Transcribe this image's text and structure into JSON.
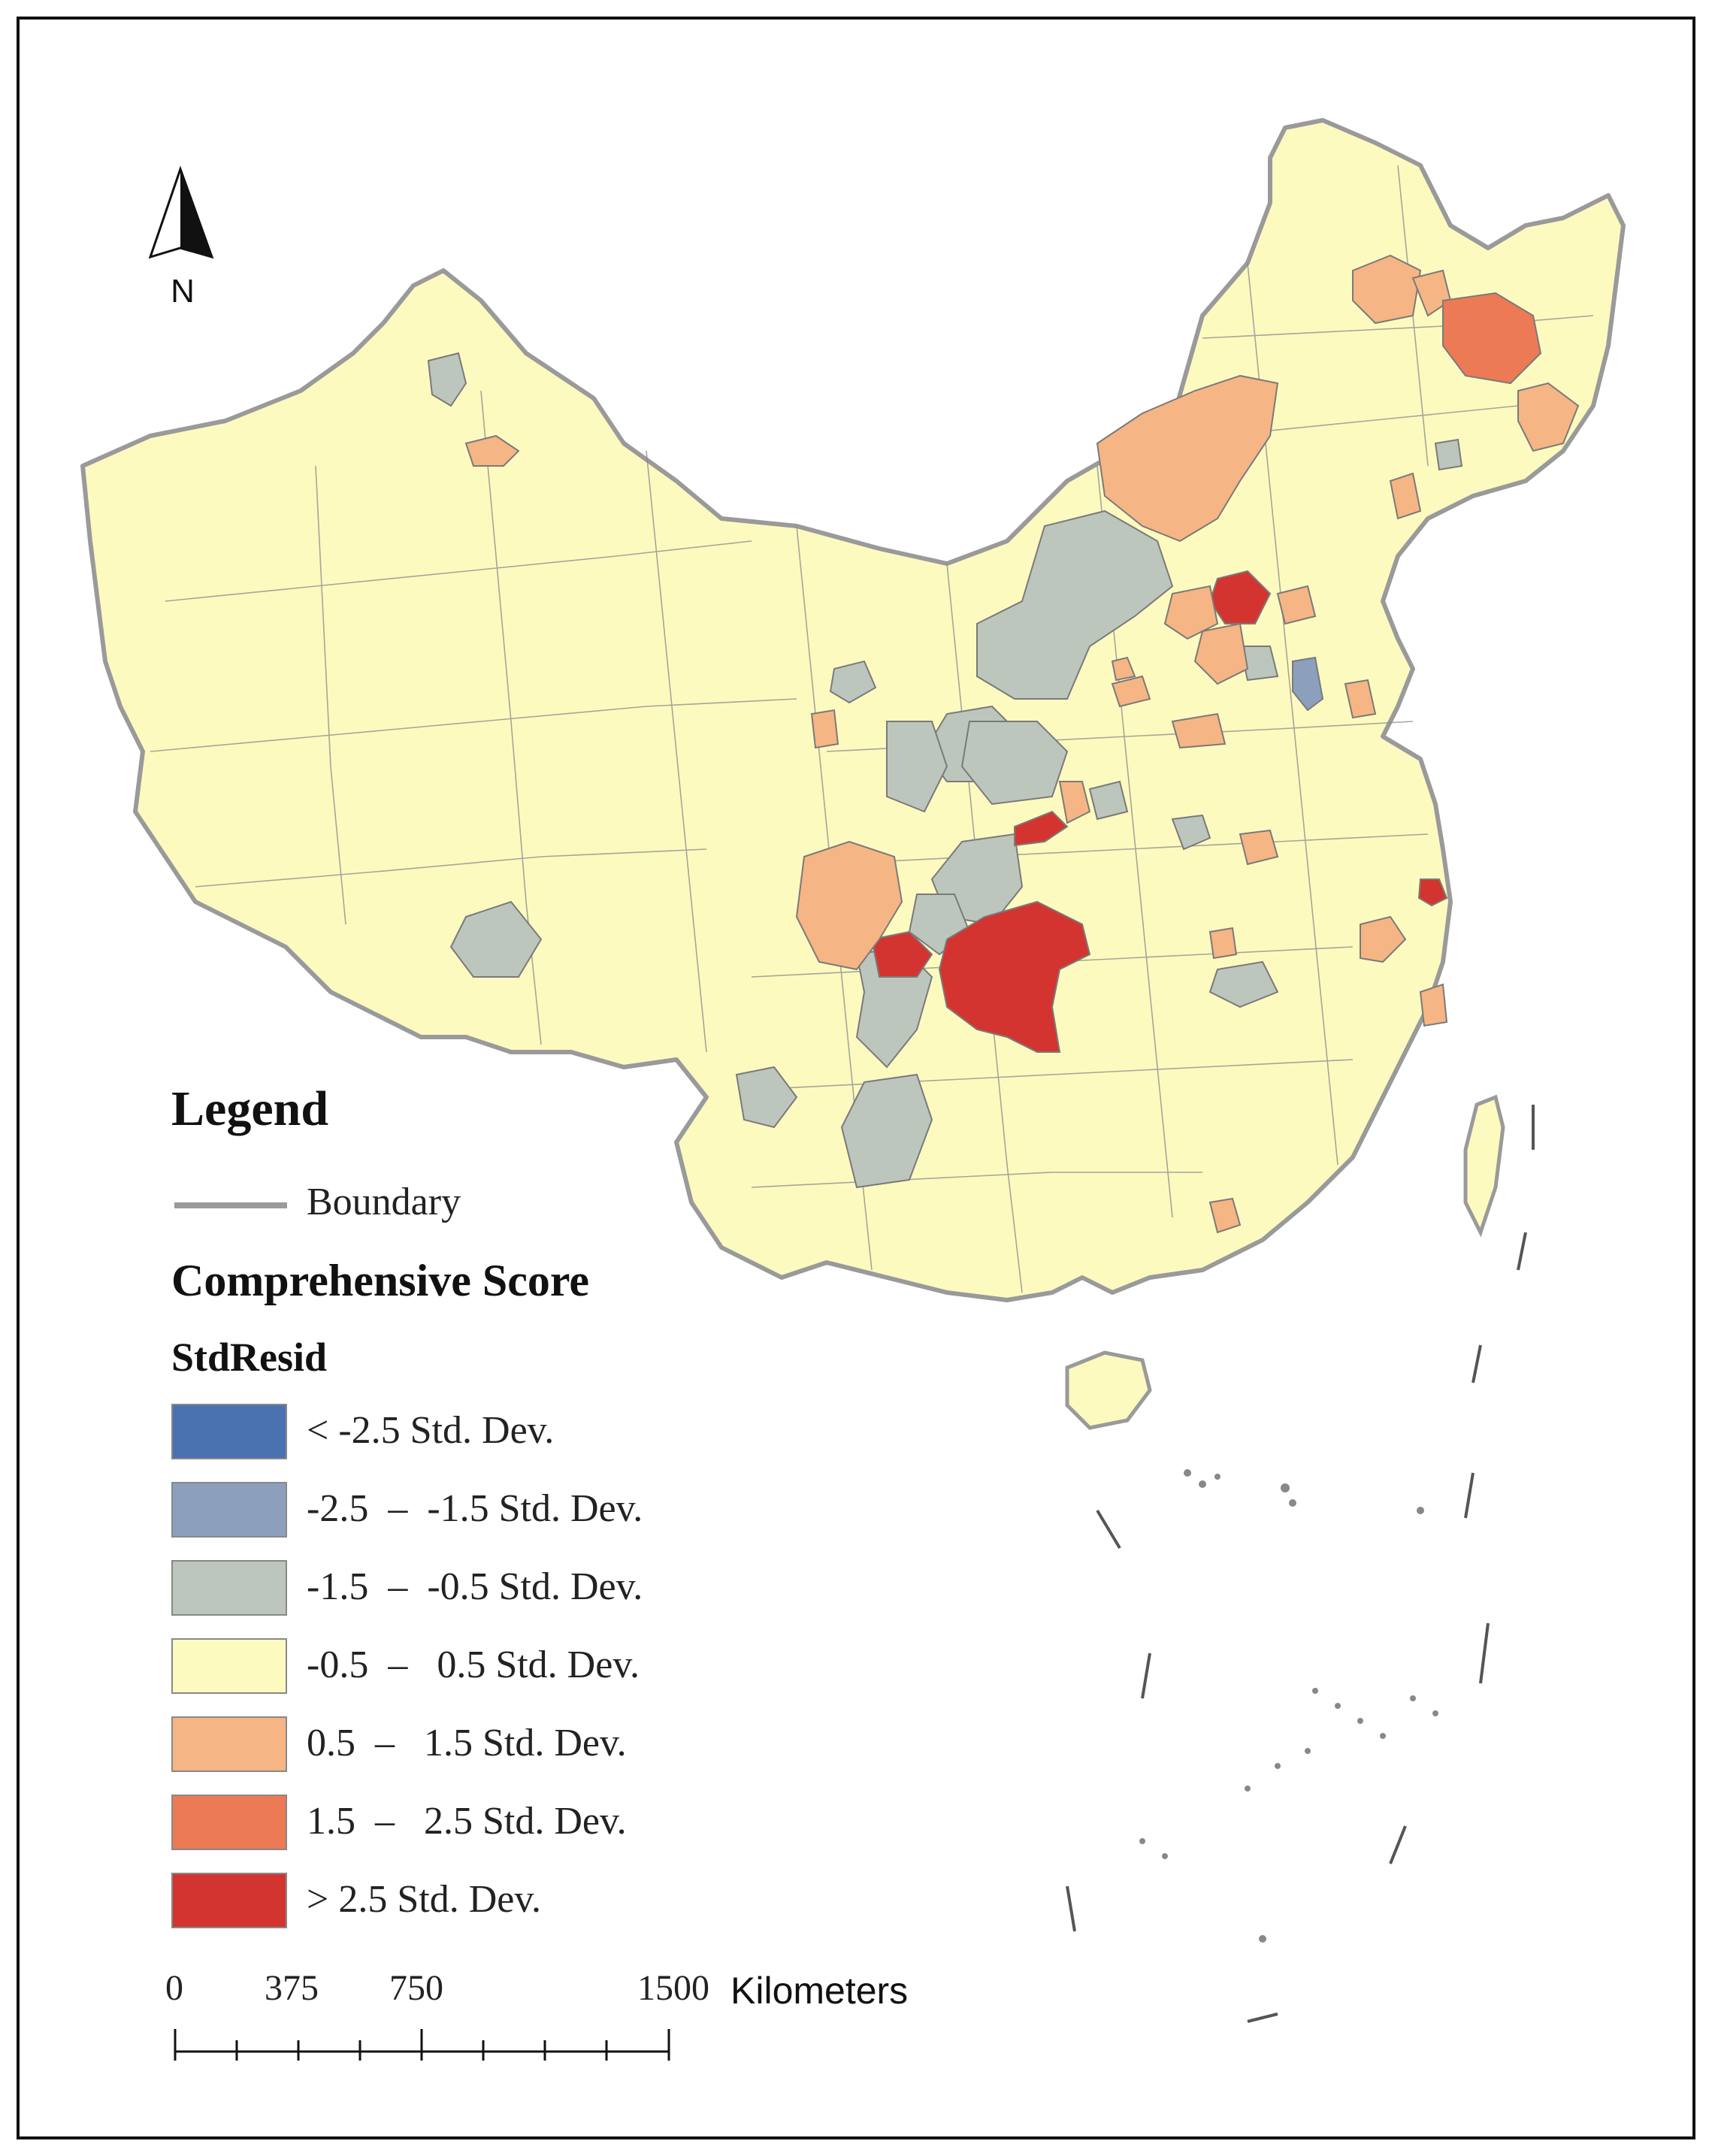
{
  "legend": {
    "title": "Legend",
    "boundary_label": "Boundary",
    "layer_name": "Comprehensive Score",
    "field_name": "StdResid",
    "classes": [
      {
        "label": "< -2.5 Std. Dev.",
        "color": "#4a72b0"
      },
      {
        "label": "-2.5  –  -1.5 Std. Dev.",
        "color": "#8c9fbc"
      },
      {
        "label": "-1.5  –  -0.5 Std. Dev.",
        "color": "#bcc6bd"
      },
      {
        "label": "-0.5  –   0.5 Std. Dev.",
        "color": "#fdfac0"
      },
      {
        "label": "0.5  –   1.5 Std. Dev.",
        "color": "#f6b584"
      },
      {
        "label": "1.5  –   2.5 Std. Dev.",
        "color": "#ec7a55"
      },
      {
        "label": "> 2.5 Std. Dev.",
        "color": "#d43430"
      }
    ]
  },
  "north_arrow": {
    "label": "N"
  },
  "scale_bar": {
    "ticks": [
      "0",
      "375",
      "750",
      "1500"
    ],
    "unit": "Kilometers"
  },
  "colors": {
    "boundary": "#9a9a9a",
    "land_base": "#fdfac0",
    "region_outline": "#7a7a7a"
  }
}
